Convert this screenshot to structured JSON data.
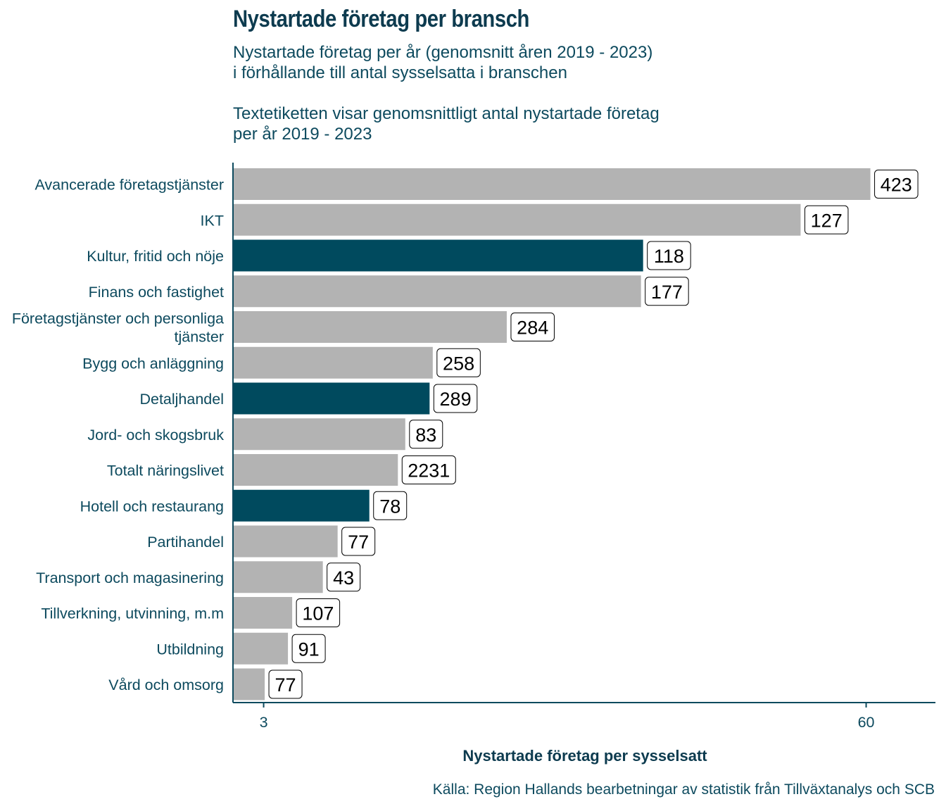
{
  "header": {
    "title": "Nystartade företag per bransch",
    "subtitle_line1": "Nystartade företag per år (genomsnitt åren 2019 - 2023)",
    "subtitle_line2": "i förhållande till antal sysselsatta i branschen",
    "subtitle_line3": "Textetiketten visar genomsnittligt antal nystartade företag",
    "subtitle_line4": "per år 2019 - 2023"
  },
  "footer": {
    "source": "Källa: Region Hallands bearbetningar av statistik från Tillväxtanalys och SCB"
  },
  "colors": {
    "highlight": "#004a5e",
    "default": "#b3b3b3",
    "text": "#0d4a5e"
  },
  "chart_data": {
    "type": "bar",
    "orientation": "horizontal",
    "xlabel": "Nystartade företag per sysselsatt",
    "ylabel": "",
    "xticks": [
      3,
      60
    ],
    "xlim": [
      0.1,
      66.5
    ],
    "grid": false,
    "categories": [
      "Avancerade företagstjänster",
      "IKT",
      "Kultur, fritid och nöje",
      "Finans och fastighet",
      "Företagstjänster och personliga tjänster",
      "Bygg och anläggning",
      "Detaljhandel",
      "Jord- och skogsbruk",
      "Totalt näringslivet",
      "Hotell och restaurang",
      "Partihandel",
      "Transport och magasinering",
      "Tillverkning, utvinning, m.m",
      "Utbildning",
      "Vård och omsorg"
    ],
    "values": [
      60.4,
      53.8,
      38.9,
      38.7,
      26.0,
      19.0,
      18.7,
      16.4,
      15.7,
      13.0,
      10.0,
      8.6,
      5.7,
      5.3,
      3.1
    ],
    "labels": [
      "423",
      "127",
      "118",
      "177",
      "284",
      "258",
      "289",
      "83",
      "2231",
      "78",
      "77",
      "43",
      "107",
      "91",
      "77"
    ],
    "highlighted": [
      false,
      false,
      true,
      false,
      false,
      false,
      true,
      false,
      false,
      true,
      false,
      false,
      false,
      false,
      false
    ]
  }
}
